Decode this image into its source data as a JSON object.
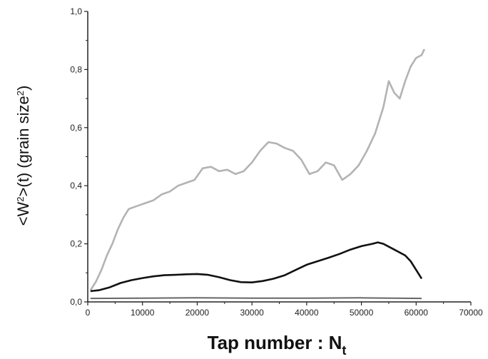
{
  "chart_data": {
    "type": "line",
    "xlabel": "Tap number : N",
    "xlabel_sub": "t",
    "ylabel": "<W²>(t) (grain size²)",
    "xlim": [
      0,
      70000
    ],
    "ylim": [
      0,
      1.0
    ],
    "x_ticks": [
      0,
      10000,
      20000,
      30000,
      40000,
      50000,
      60000,
      70000
    ],
    "y_ticks": [
      0.0,
      0.2,
      0.4,
      0.6,
      0.8,
      1.0
    ],
    "x_tick_labels": [
      "0",
      "10000",
      "20000",
      "30000",
      "40000",
      "50000",
      "60000",
      "70000"
    ],
    "y_tick_labels": [
      "0,0",
      "0,2",
      "0,4",
      "0,6",
      "0,8",
      "1,0"
    ],
    "grid": false,
    "series": [
      {
        "color": "#b3b3b3",
        "points": [
          [
            500,
            0.04
          ],
          [
            1500,
            0.07
          ],
          [
            2500,
            0.11
          ],
          [
            3500,
            0.16
          ],
          [
            4500,
            0.2
          ],
          [
            5500,
            0.25
          ],
          [
            6500,
            0.29
          ],
          [
            7500,
            0.32
          ],
          [
            9000,
            0.33
          ],
          [
            10500,
            0.34
          ],
          [
            12000,
            0.35
          ],
          [
            13500,
            0.37
          ],
          [
            15000,
            0.38
          ],
          [
            16500,
            0.4
          ],
          [
            18000,
            0.41
          ],
          [
            19500,
            0.42
          ],
          [
            21000,
            0.46
          ],
          [
            22500,
            0.465
          ],
          [
            24000,
            0.45
          ],
          [
            25500,
            0.455
          ],
          [
            27000,
            0.44
          ],
          [
            28500,
            0.45
          ],
          [
            30000,
            0.48
          ],
          [
            31500,
            0.52
          ],
          [
            33000,
            0.55
          ],
          [
            34500,
            0.545
          ],
          [
            36000,
            0.53
          ],
          [
            37500,
            0.52
          ],
          [
            39000,
            0.49
          ],
          [
            40500,
            0.44
          ],
          [
            42000,
            0.45
          ],
          [
            43500,
            0.48
          ],
          [
            45000,
            0.47
          ],
          [
            46500,
            0.42
          ],
          [
            48000,
            0.44
          ],
          [
            49500,
            0.47
          ],
          [
            51000,
            0.52
          ],
          [
            52500,
            0.58
          ],
          [
            54000,
            0.67
          ],
          [
            55000,
            0.76
          ],
          [
            56000,
            0.72
          ],
          [
            57000,
            0.7
          ],
          [
            58000,
            0.76
          ],
          [
            59000,
            0.81
          ],
          [
            60000,
            0.84
          ],
          [
            61000,
            0.85
          ],
          [
            61500,
            0.87
          ]
        ]
      },
      {
        "color": "#111111",
        "points": [
          [
            500,
            0.037
          ],
          [
            2000,
            0.04
          ],
          [
            4000,
            0.05
          ],
          [
            6000,
            0.065
          ],
          [
            8000,
            0.075
          ],
          [
            10000,
            0.082
          ],
          [
            12000,
            0.088
          ],
          [
            14000,
            0.092
          ],
          [
            16000,
            0.093
          ],
          [
            18000,
            0.095
          ],
          [
            20000,
            0.096
          ],
          [
            22000,
            0.093
          ],
          [
            24000,
            0.085
          ],
          [
            26000,
            0.075
          ],
          [
            28000,
            0.068
          ],
          [
            30000,
            0.067
          ],
          [
            32000,
            0.072
          ],
          [
            34000,
            0.08
          ],
          [
            36000,
            0.092
          ],
          [
            38000,
            0.11
          ],
          [
            40000,
            0.128
          ],
          [
            42000,
            0.14
          ],
          [
            44000,
            0.152
          ],
          [
            46000,
            0.165
          ],
          [
            48000,
            0.18
          ],
          [
            50000,
            0.192
          ],
          [
            52000,
            0.2
          ],
          [
            53000,
            0.205
          ],
          [
            54000,
            0.2
          ],
          [
            56000,
            0.18
          ],
          [
            58000,
            0.16
          ],
          [
            59000,
            0.14
          ],
          [
            60000,
            0.11
          ],
          [
            61000,
            0.08
          ]
        ]
      },
      {
        "color": "#666666",
        "points": [
          [
            500,
            0.012
          ],
          [
            10000,
            0.013
          ],
          [
            20000,
            0.014
          ],
          [
            30000,
            0.013
          ],
          [
            40000,
            0.013
          ],
          [
            50000,
            0.014
          ],
          [
            61000,
            0.012
          ]
        ]
      }
    ]
  }
}
